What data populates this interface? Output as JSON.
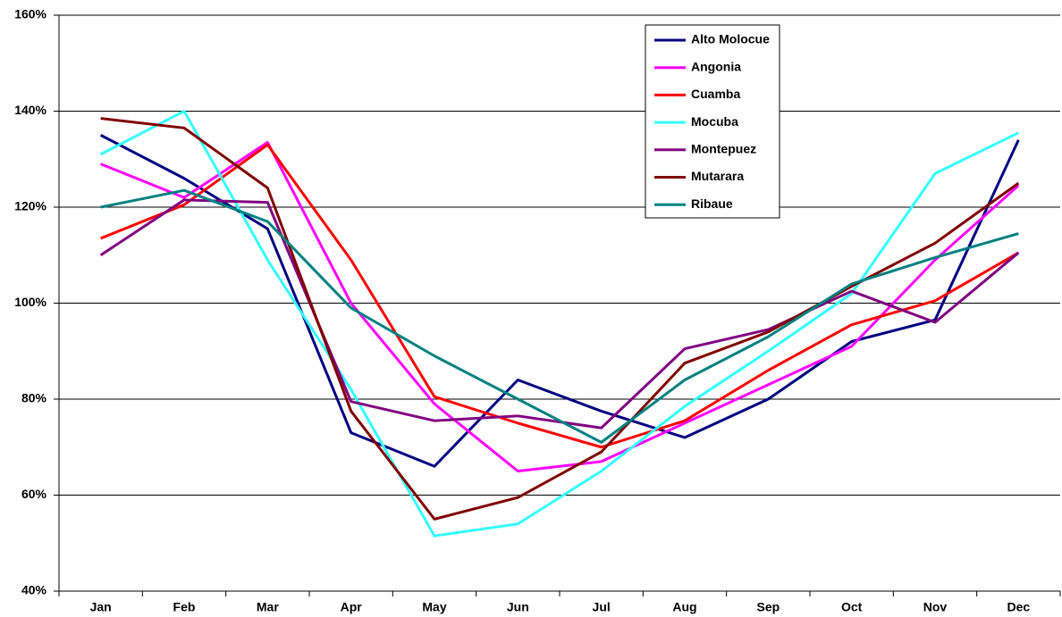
{
  "chart_data": {
    "type": "line",
    "categories": [
      "Jan",
      "Feb",
      "Mar",
      "Apr",
      "May",
      "Jun",
      "Jul",
      "Aug",
      "Sep",
      "Oct",
      "Nov",
      "Dec"
    ],
    "series": [
      {
        "name": "Alto Molocue",
        "color": "#000080",
        "values": [
          135,
          126,
          115.5,
          73,
          66,
          84,
          77.5,
          72,
          80,
          92,
          96.5,
          134
        ]
      },
      {
        "name": "Angonia",
        "color": "#ff00ff",
        "values": [
          129,
          122,
          133.5,
          100,
          79,
          65,
          67,
          75,
          83,
          91,
          109,
          124.5
        ]
      },
      {
        "name": "Cuamba",
        "color": "#ff0000",
        "values": [
          113.5,
          120.5,
          133,
          109,
          80.5,
          75,
          70,
          75.5,
          86,
          95.5,
          100.5,
          110.5
        ]
      },
      {
        "name": "Mocuba",
        "color": "#33ffff",
        "values": [
          131,
          140,
          109,
          82,
          51.5,
          54,
          65,
          78.5,
          90,
          102,
          127,
          135.5
        ]
      },
      {
        "name": "Montepuez",
        "color": "#800080",
        "values": [
          110,
          121.5,
          121,
          79.5,
          75.5,
          76.5,
          74,
          90.5,
          94.5,
          102.5,
          96,
          110.5
        ]
      },
      {
        "name": "Mutarara",
        "color": "#800000",
        "values": [
          138.5,
          136.5,
          124,
          77.5,
          55,
          59.5,
          69,
          87.5,
          94,
          103.5,
          112.5,
          125
        ]
      },
      {
        "name": "Ribaue",
        "color": "#008080",
        "values": [
          120,
          123.5,
          117,
          99,
          89,
          80,
          71,
          84,
          93,
          104,
          109.5,
          114.5
        ]
      }
    ],
    "ylim": [
      40,
      160
    ],
    "yticks": [
      {
        "value": 40,
        "label": "40%"
      },
      {
        "value": 60,
        "label": "60%"
      },
      {
        "value": 80,
        "label": "80%"
      },
      {
        "value": 100,
        "label": "100%"
      },
      {
        "value": 120,
        "label": "120%"
      },
      {
        "value": 140,
        "label": "140%"
      },
      {
        "value": 160,
        "label": "160%"
      }
    ],
    "grid": true,
    "legend": "top-right"
  }
}
